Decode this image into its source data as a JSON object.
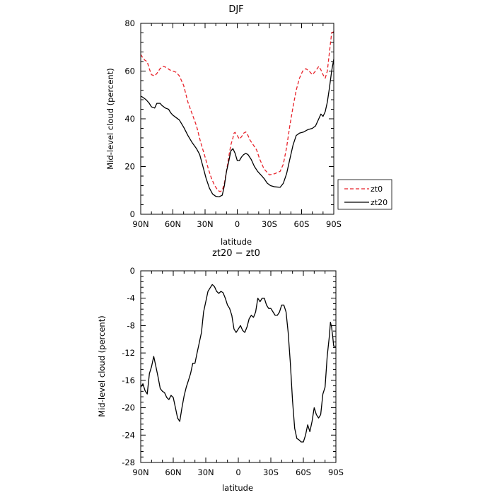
{
  "chart_data": [
    {
      "type": "line",
      "title": "DJF",
      "xlabel": "latitude",
      "ylabel": "Mid-level cloud (percent)",
      "xlim": [
        90,
        -90
      ],
      "ylim": [
        0,
        80
      ],
      "x_ticks": [
        90,
        60,
        30,
        0,
        -30,
        -60,
        -90
      ],
      "x_tick_labels": [
        "90N",
        "60N",
        "30N",
        "0",
        "30S",
        "60S",
        "90S"
      ],
      "y_ticks": [
        0,
        20,
        40,
        60,
        80
      ],
      "y_tick_labels": [
        "0",
        "20",
        "40",
        "60",
        "80"
      ],
      "legend": "right",
      "series": [
        {
          "name": "zt0",
          "color": "#e8222a",
          "dashed": true,
          "x": [
            90,
            88,
            86,
            84,
            82,
            80,
            77,
            75,
            72,
            69,
            66,
            63,
            60,
            57,
            54,
            50,
            46,
            42,
            38,
            34,
            30,
            27,
            24,
            21,
            18,
            16,
            14,
            12,
            10,
            8,
            6,
            4,
            3,
            2,
            1,
            0,
            -2,
            -4,
            -6,
            -8,
            -10,
            -12,
            -15,
            -18,
            -21,
            -25,
            -30,
            -35,
            -40,
            -43,
            -46,
            -49,
            -52,
            -55,
            -58,
            -61,
            -64,
            -67,
            -70,
            -73,
            -76,
            -78,
            -80,
            -82,
            -84,
            -86,
            -88,
            -90
          ],
          "y": [
            67,
            65.5,
            64.5,
            64,
            61,
            58.5,
            58,
            59,
            61,
            62,
            61.5,
            60.5,
            60,
            59.5,
            58,
            54,
            47,
            42,
            37,
            30,
            24,
            19,
            15,
            12,
            10,
            9.5,
            10,
            13,
            18,
            24,
            29,
            32,
            34,
            34.3,
            33.5,
            33,
            31.5,
            32.5,
            34,
            34.5,
            33,
            31,
            29,
            27,
            23,
            19,
            16.5,
            17,
            18,
            21,
            28,
            37,
            45,
            52,
            57,
            60,
            61,
            60,
            58.5,
            60,
            62,
            60.5,
            58.5,
            57,
            60,
            68,
            76,
            76.5
          ]
        },
        {
          "name": "zt20",
          "color": "#000000",
          "dashed": false,
          "x": [
            90,
            88,
            85,
            82,
            80,
            77,
            75,
            72,
            70,
            67,
            64,
            62,
            60,
            57,
            54,
            50,
            46,
            42,
            38,
            35,
            32,
            29,
            26,
            23,
            20,
            17,
            14,
            12,
            10,
            8,
            6,
            4,
            2,
            0,
            -2,
            -4,
            -6,
            -8,
            -10,
            -13,
            -16,
            -19,
            -22,
            -25,
            -28,
            -31,
            -35,
            -40,
            -43,
            -46,
            -49,
            -52,
            -55,
            -58,
            -62,
            -66,
            -70,
            -73,
            -76,
            -78,
            -80,
            -82,
            -84,
            -86,
            -88,
            -90
          ],
          "y": [
            49.5,
            49,
            48,
            46.5,
            45,
            44.5,
            46.5,
            46.5,
            45.5,
            44.5,
            44,
            42.5,
            41.5,
            40.5,
            39.5,
            36.5,
            33,
            30,
            27.5,
            25,
            20,
            15,
            11,
            8.5,
            7.5,
            7.3,
            8,
            12,
            18,
            22,
            26.5,
            27.5,
            25.5,
            22.5,
            22.5,
            24,
            25,
            25.5,
            25,
            23,
            20,
            18,
            16.5,
            15,
            13,
            12,
            11.5,
            11.3,
            13,
            17,
            23,
            29,
            33,
            34,
            34.5,
            35.5,
            36,
            37,
            40,
            42,
            41,
            43,
            47,
            53,
            60,
            65
          ]
        }
      ]
    },
    {
      "type": "line",
      "title": "zt20 − zt0",
      "xlabel": "latitude",
      "ylabel": "Mid-level cloud (percent)",
      "xlim": [
        90,
        -90
      ],
      "ylim": [
        -28,
        0
      ],
      "x_ticks": [
        90,
        60,
        30,
        0,
        -30,
        -60,
        -90
      ],
      "x_tick_labels": [
        "90N",
        "60N",
        "30N",
        "0",
        "30S",
        "60S",
        "90S"
      ],
      "y_ticks": [
        0,
        -4,
        -8,
        -12,
        -16,
        -20,
        -24,
        -28
      ],
      "y_tick_labels": [
        "0",
        "-4",
        "-8",
        "-12",
        "-16",
        "-20",
        "-24",
        "-28"
      ],
      "series": [
        {
          "color": "#000000",
          "dashed": false,
          "x": [
            90,
            88,
            86,
            84,
            82,
            80,
            78,
            76,
            74,
            72,
            70,
            68,
            66,
            64,
            62,
            60,
            58,
            56,
            54,
            52,
            50,
            48,
            46,
            44,
            42,
            40,
            38,
            36,
            34,
            32,
            30,
            28,
            26,
            24,
            22,
            20,
            18,
            16,
            14,
            12,
            10,
            8,
            6,
            4,
            2,
            0,
            -2,
            -4,
            -6,
            -8,
            -10,
            -12,
            -14,
            -16,
            -18,
            -20,
            -22,
            -24,
            -26,
            -28,
            -30,
            -32,
            -34,
            -36,
            -38,
            -40,
            -42,
            -44,
            -46,
            -48,
            -50,
            -52,
            -54,
            -56,
            -58,
            -60,
            -62,
            -64,
            -66,
            -68,
            -70,
            -72,
            -74,
            -76,
            -78,
            -80,
            -82,
            -84,
            -85,
            -86,
            -87,
            -88,
            -90
          ],
          "y": [
            -17,
            -16.5,
            -17.5,
            -18,
            -15,
            -14,
            -12.5,
            -14,
            -15.5,
            -17.2,
            -17.6,
            -17.8,
            -18.5,
            -18.8,
            -18.2,
            -18.5,
            -20,
            -21.5,
            -22,
            -20,
            -18.3,
            -17,
            -16,
            -15,
            -13.5,
            -13.5,
            -12,
            -10.5,
            -9,
            -6,
            -4.5,
            -3,
            -2.5,
            -2,
            -2.3,
            -3,
            -3.3,
            -3,
            -3.2,
            -4,
            -5,
            -5.5,
            -6.5,
            -8.5,
            -9,
            -8.5,
            -8,
            -8.7,
            -9,
            -8.2,
            -7,
            -6.5,
            -6.8,
            -6,
            -4,
            -4.5,
            -4,
            -4,
            -5,
            -5.5,
            -5.5,
            -6,
            -6.5,
            -6.5,
            -6,
            -5,
            -5,
            -6,
            -9,
            -13.5,
            -19,
            -23,
            -24.5,
            -24.7,
            -25,
            -25,
            -24,
            -22.5,
            -23.5,
            -22,
            -20,
            -21,
            -21.5,
            -21,
            -18,
            -17,
            -12.5,
            -9.5,
            -7.5,
            -8.2,
            -9.5,
            -11,
            -11
          ]
        }
      ]
    }
  ]
}
